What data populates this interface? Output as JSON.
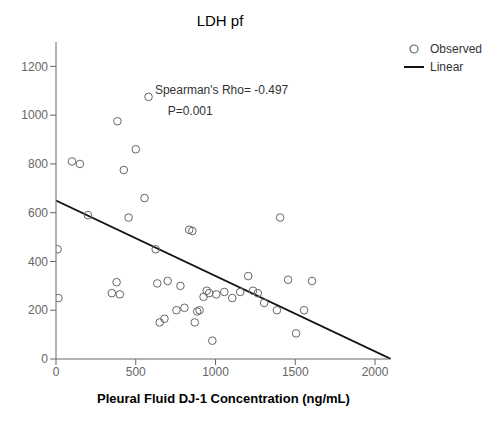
{
  "chart_data": {
    "type": "scatter",
    "title": "LDH pf",
    "xlabel": "Pleural Fluid DJ-1 Concentration (ng/mL)",
    "xlim": [
      0,
      2100
    ],
    "ylim": [
      0,
      1300
    ],
    "xticks": [
      0,
      500,
      1000,
      1500,
      2000
    ],
    "yticks": [
      0,
      200,
      400,
      600,
      800,
      1000,
      1200
    ],
    "grid": false,
    "legend": "right",
    "series": [
      {
        "name": "Observed",
        "type": "scatter",
        "marker": "circle",
        "color": "#666666",
        "x": [
          10,
          15,
          100,
          150,
          200,
          350,
          380,
          385,
          400,
          425,
          455,
          500,
          555,
          580,
          625,
          635,
          650,
          680,
          700,
          755,
          780,
          805,
          835,
          855,
          870,
          885,
          900,
          925,
          945,
          960,
          980,
          1005,
          1055,
          1105,
          1155,
          1205,
          1235,
          1265,
          1305,
          1385,
          1405,
          1455,
          1505,
          1555,
          1605
        ],
        "values": [
          450,
          250,
          810,
          800,
          590,
          270,
          315,
          975,
          265,
          775,
          580,
          860,
          660,
          1075,
          450,
          310,
          150,
          165,
          320,
          200,
          300,
          210,
          530,
          525,
          150,
          195,
          200,
          255,
          280,
          270,
          75,
          265,
          275,
          250,
          275,
          340,
          280,
          270,
          230,
          200,
          580,
          325,
          105,
          200,
          320
        ]
      },
      {
        "name": "Linear",
        "type": "line",
        "line_style": "solid",
        "color": "#111111",
        "x": [
          0,
          2100
        ],
        "values": [
          650,
          0
        ]
      }
    ],
    "annotations": [
      {
        "text": "Spearman's Rho= -0.497",
        "x": 620,
        "y": 1130
      },
      {
        "text": "P=0.001",
        "x": 700,
        "y": 1045
      }
    ]
  }
}
